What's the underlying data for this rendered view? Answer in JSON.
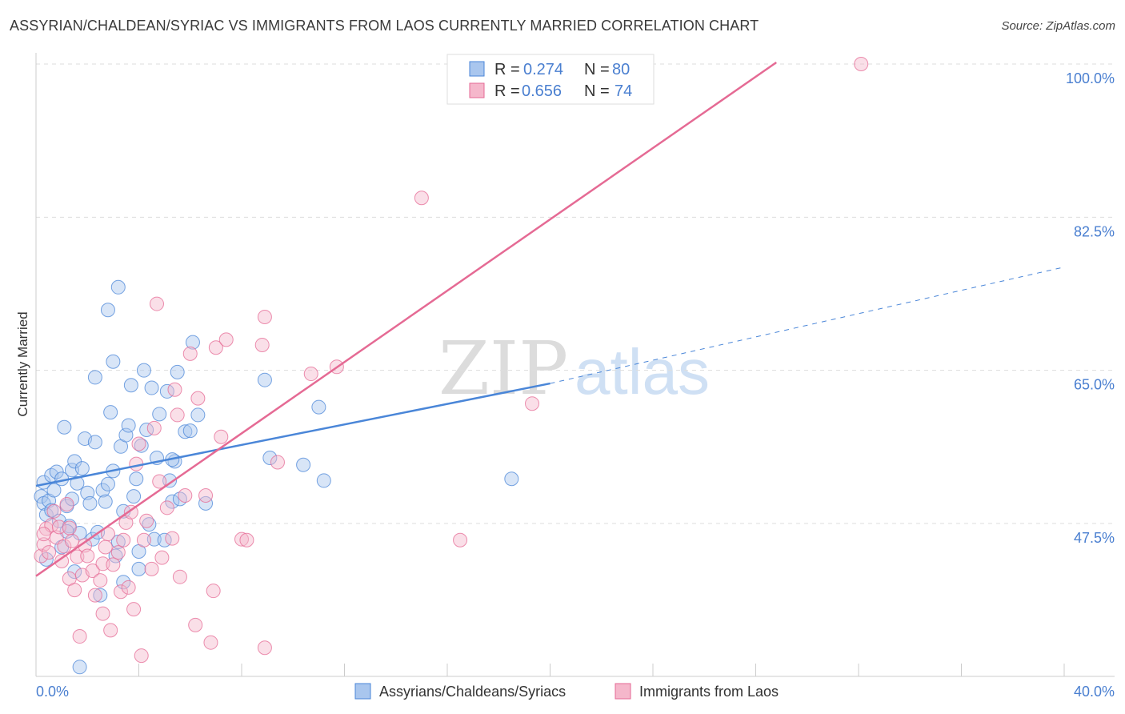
{
  "title": "ASSYRIAN/CHALDEAN/SYRIAC VS IMMIGRANTS FROM LAOS CURRENTLY MARRIED CORRELATION CHART",
  "source": "Source: ZipAtlas.com",
  "watermark": {
    "zip": "ZIP",
    "atlas": "atlas"
  },
  "colors": {
    "blue": "#4a86d8",
    "blue_fill": "#a9c6ee",
    "pink": "#e56a94",
    "pink_fill": "#f5b7cb",
    "axis_label": "#4a7fd0"
  },
  "chart_data": {
    "type": "scatter",
    "ylabel": "Currently Married",
    "xlabel": "",
    "xlim": [
      0,
      40
    ],
    "ylim": [
      30,
      100
    ],
    "x_tick_labels": [
      "0.0%",
      "40.0%"
    ],
    "y_ticks": [
      47.5,
      65.0,
      82.5,
      100.0
    ],
    "y_tick_labels": [
      "47.5%",
      "65.0%",
      "82.5%",
      "100.0%"
    ],
    "grid": "horizontal dashed",
    "legend_position": "top-center",
    "legend": [
      {
        "r_label": "R =",
        "r_value": "0.274",
        "n_label": "N =",
        "n_value": "80"
      },
      {
        "r_label": "R =",
        "r_value": "0.656",
        "n_label": "N =",
        "n_value": "74"
      }
    ],
    "series": [
      {
        "name": "Assyrians/Chaldeans/Syriacs",
        "color": "#4a86d8",
        "trend": {
          "x0": 0,
          "y0": 51.8,
          "x1": 20,
          "y1": 63.5,
          "dashed_to_x": 40,
          "dashed_to_y": 76.8
        },
        "points": [
          [
            0.2,
            50.6
          ],
          [
            0.3,
            52.2
          ],
          [
            0.3,
            49.8
          ],
          [
            0.4,
            48.5
          ],
          [
            0.5,
            50.1
          ],
          [
            0.6,
            53.0
          ],
          [
            0.6,
            49.0
          ],
          [
            0.7,
            51.3
          ],
          [
            0.8,
            53.4
          ],
          [
            0.9,
            47.8
          ],
          [
            1.0,
            52.6
          ],
          [
            1.0,
            44.8
          ],
          [
            1.1,
            58.5
          ],
          [
            1.2,
            49.5
          ],
          [
            1.3,
            47.2
          ],
          [
            1.4,
            53.6
          ],
          [
            1.4,
            50.3
          ],
          [
            1.5,
            54.6
          ],
          [
            1.6,
            52.1
          ],
          [
            1.7,
            46.4
          ],
          [
            1.8,
            53.8
          ],
          [
            1.9,
            57.2
          ],
          [
            2.0,
            51.0
          ],
          [
            2.1,
            49.8
          ],
          [
            2.2,
            45.7
          ],
          [
            2.3,
            64.2
          ],
          [
            2.3,
            56.8
          ],
          [
            2.4,
            46.5
          ],
          [
            2.6,
            51.3
          ],
          [
            2.7,
            50.0
          ],
          [
            2.8,
            52.0
          ],
          [
            2.8,
            71.9
          ],
          [
            2.9,
            60.2
          ],
          [
            3.0,
            66.0
          ],
          [
            3.1,
            43.8
          ],
          [
            3.2,
            45.4
          ],
          [
            3.0,
            53.5
          ],
          [
            3.2,
            74.5
          ],
          [
            3.3,
            56.3
          ],
          [
            3.4,
            48.9
          ],
          [
            3.5,
            57.6
          ],
          [
            3.6,
            58.7
          ],
          [
            3.7,
            63.3
          ],
          [
            3.8,
            50.6
          ],
          [
            3.9,
            52.6
          ],
          [
            4.0,
            44.3
          ],
          [
            4.1,
            56.4
          ],
          [
            4.2,
            65.0
          ],
          [
            4.3,
            58.2
          ],
          [
            4.4,
            47.4
          ],
          [
            4.5,
            63.0
          ],
          [
            4.6,
            45.7
          ],
          [
            4.7,
            55.0
          ],
          [
            4.8,
            60.0
          ],
          [
            5.0,
            45.6
          ],
          [
            5.1,
            62.6
          ],
          [
            5.2,
            52.4
          ],
          [
            5.3,
            50.0
          ],
          [
            5.4,
            54.6
          ],
          [
            5.5,
            64.8
          ],
          [
            5.6,
            50.3
          ],
          [
            5.8,
            58.0
          ],
          [
            6.1,
            68.2
          ],
          [
            6.3,
            59.9
          ],
          [
            6.6,
            49.8
          ],
          [
            8.9,
            63.9
          ],
          [
            9.1,
            55.0
          ],
          [
            10.4,
            54.2
          ],
          [
            11.2,
            52.4
          ],
          [
            11.0,
            60.8
          ],
          [
            0.4,
            43.4
          ],
          [
            1.5,
            42.0
          ],
          [
            1.7,
            31.1
          ],
          [
            2.5,
            39.3
          ],
          [
            4.0,
            42.3
          ],
          [
            5.3,
            54.8
          ],
          [
            6.0,
            58.1
          ],
          [
            3.4,
            40.8
          ],
          [
            1.2,
            46.6
          ],
          [
            18.5,
            52.6
          ]
        ]
      },
      {
        "name": "Immigrants from Laos",
        "color": "#e56a94",
        "trend": {
          "x0": 0,
          "y0": 41.5,
          "x1": 40,
          "y1": 123.0
        },
        "points": [
          [
            0.2,
            43.8
          ],
          [
            0.3,
            45.1
          ],
          [
            0.4,
            46.9
          ],
          [
            0.5,
            44.2
          ],
          [
            0.6,
            47.3
          ],
          [
            0.7,
            48.9
          ],
          [
            0.8,
            45.9
          ],
          [
            0.9,
            47.1
          ],
          [
            1.0,
            43.2
          ],
          [
            1.1,
            44.9
          ],
          [
            1.2,
            49.7
          ],
          [
            1.3,
            41.2
          ],
          [
            1.4,
            45.5
          ],
          [
            1.5,
            39.9
          ],
          [
            1.6,
            43.7
          ],
          [
            1.7,
            34.6
          ],
          [
            1.8,
            41.6
          ],
          [
            1.9,
            45.0
          ],
          [
            2.0,
            43.8
          ],
          [
            2.2,
            42.1
          ],
          [
            2.3,
            39.3
          ],
          [
            2.5,
            41.0
          ],
          [
            2.6,
            42.9
          ],
          [
            2.7,
            44.8
          ],
          [
            2.8,
            46.3
          ],
          [
            2.9,
            35.3
          ],
          [
            3.0,
            42.8
          ],
          [
            3.2,
            44.2
          ],
          [
            3.3,
            39.7
          ],
          [
            3.4,
            45.6
          ],
          [
            3.5,
            47.6
          ],
          [
            3.6,
            40.2
          ],
          [
            3.7,
            48.8
          ],
          [
            3.8,
            37.7
          ],
          [
            3.9,
            54.3
          ],
          [
            4.0,
            56.6
          ],
          [
            4.1,
            32.4
          ],
          [
            4.2,
            45.6
          ],
          [
            4.3,
            47.8
          ],
          [
            4.5,
            42.3
          ],
          [
            4.6,
            58.4
          ],
          [
            4.7,
            72.6
          ],
          [
            4.8,
            52.3
          ],
          [
            4.9,
            43.6
          ],
          [
            5.1,
            49.3
          ],
          [
            5.3,
            45.8
          ],
          [
            5.4,
            62.8
          ],
          [
            5.5,
            59.9
          ],
          [
            5.6,
            41.4
          ],
          [
            5.8,
            50.7
          ],
          [
            6.0,
            66.9
          ],
          [
            6.2,
            35.9
          ],
          [
            6.3,
            61.8
          ],
          [
            6.6,
            50.7
          ],
          [
            6.8,
            33.9
          ],
          [
            6.9,
            39.8
          ],
          [
            7.0,
            67.6
          ],
          [
            7.2,
            57.4
          ],
          [
            7.4,
            68.5
          ],
          [
            8.0,
            45.7
          ],
          [
            8.2,
            45.6
          ],
          [
            8.8,
            67.9
          ],
          [
            8.9,
            71.1
          ],
          [
            8.9,
            33.3
          ],
          [
            9.4,
            54.5
          ],
          [
            10.7,
            64.6
          ],
          [
            11.7,
            65.4
          ],
          [
            19.3,
            61.2
          ],
          [
            15.0,
            84.7
          ],
          [
            16.5,
            45.6
          ],
          [
            32.1,
            100.0
          ],
          [
            0.3,
            46.3
          ],
          [
            1.3,
            47.0
          ],
          [
            2.6,
            37.2
          ]
        ]
      }
    ]
  }
}
